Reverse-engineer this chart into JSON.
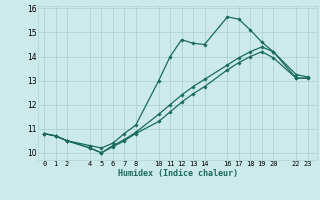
{
  "xlabel": "Humidex (Indice chaleur)",
  "bg_color": "#cdeaea",
  "grid_color": "#aed4d4",
  "line_color": "#1a6b5a",
  "series": [
    {
      "x": [
        0,
        1,
        2,
        4,
        5,
        6,
        7,
        8,
        10,
        11,
        12,
        13,
        14,
        16,
        17,
        18,
        19,
        20,
        22,
        23
      ],
      "y": [
        10.8,
        10.7,
        10.5,
        10.3,
        10.2,
        10.4,
        10.8,
        11.15,
        13.0,
        14.0,
        14.7,
        14.55,
        14.5,
        15.65,
        15.55,
        15.1,
        14.6,
        14.2,
        13.25,
        13.15
      ]
    },
    {
      "x": [
        0,
        1,
        2,
        4,
        5,
        6,
        7,
        8,
        10,
        11,
        12,
        13,
        14,
        16,
        17,
        18,
        19,
        20,
        22,
        23
      ],
      "y": [
        10.8,
        10.7,
        10.5,
        10.2,
        10.0,
        10.3,
        10.55,
        10.85,
        11.6,
        12.0,
        12.4,
        12.75,
        13.05,
        13.65,
        13.95,
        14.2,
        14.4,
        14.2,
        13.1,
        13.1
      ]
    },
    {
      "x": [
        0,
        1,
        2,
        4,
        5,
        6,
        7,
        8,
        10,
        11,
        12,
        13,
        14,
        16,
        17,
        18,
        19,
        20,
        22,
        23
      ],
      "y": [
        10.8,
        10.7,
        10.5,
        10.2,
        10.0,
        10.25,
        10.5,
        10.8,
        11.3,
        11.7,
        12.1,
        12.45,
        12.75,
        13.45,
        13.75,
        14.0,
        14.2,
        13.95,
        13.1,
        13.1
      ]
    }
  ],
  "xlim": [
    -0.5,
    23.8
  ],
  "ylim": [
    9.7,
    16.1
  ],
  "xticks": [
    0,
    1,
    2,
    4,
    5,
    6,
    7,
    8,
    10,
    11,
    12,
    13,
    14,
    16,
    17,
    18,
    19,
    20,
    22,
    23
  ],
  "xtick_labels": [
    "0",
    "1",
    "2",
    "4",
    "5",
    "6",
    "7",
    "8",
    "10",
    "11",
    "12",
    "13",
    "14",
    "16",
    "17",
    "18",
    "19",
    "20",
    "22",
    "23"
  ],
  "yticks": [
    10,
    11,
    12,
    13,
    14,
    15,
    16
  ],
  "ytick_labels": [
    "10",
    "11",
    "12",
    "13",
    "14",
    "15",
    "16"
  ],
  "marker": "D",
  "marker_size": 1.8,
  "linewidth": 0.9
}
